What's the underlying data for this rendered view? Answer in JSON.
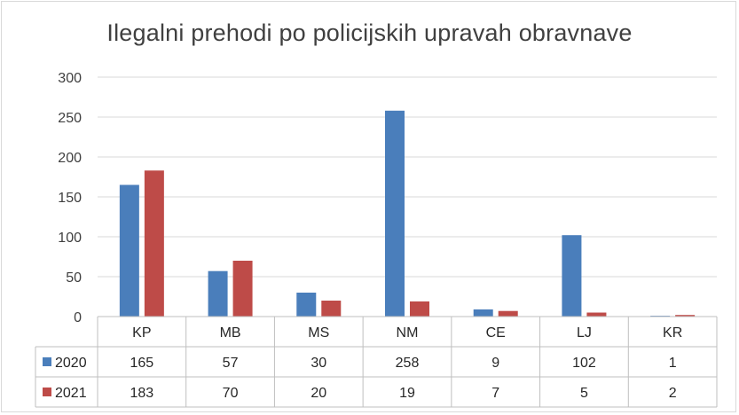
{
  "chart_data": {
    "type": "bar",
    "title": "Ilegalni prehodi po policijskih upravah obravnave",
    "categories": [
      "KP",
      "MB",
      "MS",
      "NM",
      "CE",
      "LJ",
      "KR"
    ],
    "series": [
      {
        "name": "2020",
        "color": "#4a7ebb",
        "values": [
          165,
          57,
          30,
          258,
          9,
          102,
          1
        ]
      },
      {
        "name": "2021",
        "color": "#be4b48",
        "values": [
          183,
          70,
          20,
          19,
          7,
          5,
          2
        ]
      }
    ],
    "ylim": [
      0,
      300
    ],
    "yticks": [
      0,
      50,
      100,
      150,
      200,
      250,
      300
    ],
    "grid": true,
    "legend": "data-table"
  }
}
